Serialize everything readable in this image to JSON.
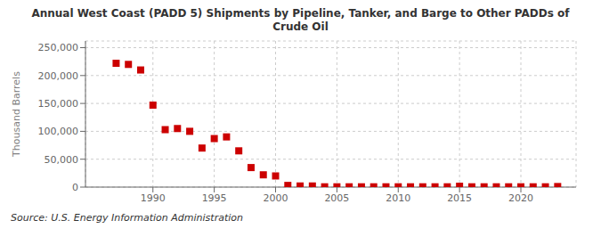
{
  "chart_data": {
    "type": "scatter",
    "title": "Annual West Coast (PADD 5) Shipments by Pipeline, Tanker, and Barge to Other PADDs of\nCrude Oil",
    "ylabel": "Thousand Barrels",
    "annotations": [
      "Source: U.S. Energy Information Administration"
    ],
    "x": [
      1987,
      1988,
      1989,
      1990,
      1991,
      1992,
      1993,
      1994,
      1995,
      1996,
      1997,
      1998,
      1999,
      2000,
      2001,
      2002,
      2003,
      2004,
      2005,
      2006,
      2007,
      2008,
      2009,
      2010,
      2011,
      2012,
      2013,
      2014,
      2015,
      2016,
      2017,
      2018,
      2019,
      2020,
      2021,
      2022,
      2023
    ],
    "values": [
      222000,
      220000,
      210000,
      147000,
      103000,
      105000,
      100000,
      70000,
      87000,
      90000,
      65000,
      35000,
      22000,
      20000,
      3000,
      2000,
      2000,
      500,
      500,
      500,
      500,
      500,
      500,
      500,
      500,
      500,
      500,
      500,
      1500,
      500,
      500,
      500,
      500,
      500,
      500,
      500,
      1000
    ],
    "color": "#cc0000",
    "marker": "square",
    "xlim": [
      1984.5,
      2024.5
    ],
    "xticks": [
      1990,
      1995,
      2000,
      2005,
      2010,
      2015,
      2020
    ],
    "ylim": [
      0,
      262000
    ],
    "yticks": [
      0,
      {
        "value": 50000,
        "label": "50,000"
      },
      {
        "value": 100000,
        "label": "100,000"
      },
      {
        "value": 150000,
        "label": "150,000"
      },
      {
        "value": 200000,
        "label": "200,000"
      },
      {
        "value": 250000,
        "label": "250,000"
      }
    ],
    "grid": true
  }
}
